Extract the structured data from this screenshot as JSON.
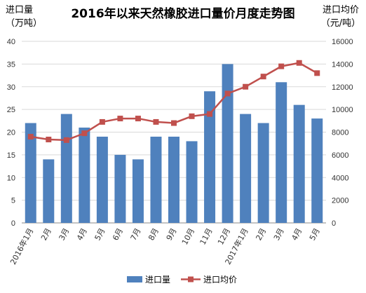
{
  "chart_data": {
    "type": "bar+line",
    "title": "2016年以来天然橡胶进口量价月度走势图",
    "left_axis_unit": [
      "进口量",
      "（万吨）"
    ],
    "right_axis_unit": [
      "进口均价",
      "（元/吨）"
    ],
    "categories": [
      "2016年1月",
      "2月",
      "3月",
      "4月",
      "5月",
      "6月",
      "7月",
      "8月",
      "9月",
      "10月",
      "11月",
      "12月",
      "2017年1月",
      "2月",
      "3月",
      "4月",
      "5月"
    ],
    "y_left": {
      "min": 0,
      "max": 40,
      "step": 5
    },
    "y_right": {
      "min": 0,
      "max": 16000,
      "step": 2000
    },
    "grid": true,
    "legend_position": "bottom",
    "series": [
      {
        "name": "进口量",
        "type": "bar",
        "axis": "left",
        "color": "#4F81BD",
        "values": [
          22,
          14,
          24,
          21,
          19,
          15,
          14,
          19,
          19,
          18,
          29,
          35,
          24,
          22,
          31,
          26,
          23
        ]
      },
      {
        "name": "进口均价",
        "type": "line",
        "axis": "right",
        "color": "#C0504D",
        "values": [
          7600,
          7350,
          7300,
          7900,
          8900,
          9200,
          9200,
          8900,
          8800,
          9400,
          9600,
          11400,
          12000,
          12900,
          13800,
          14100,
          13200
        ]
      }
    ]
  }
}
